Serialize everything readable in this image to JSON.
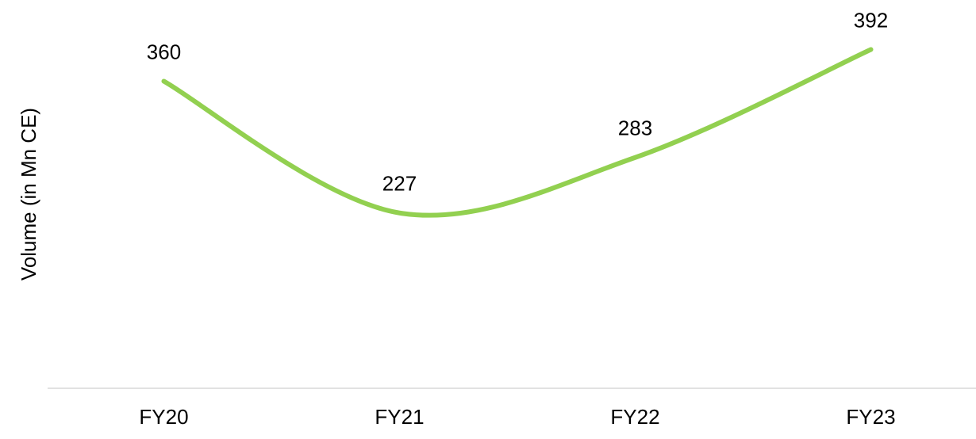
{
  "chart_data": {
    "type": "line",
    "ylabel": "Volume (in Mn CE)",
    "categories": [
      "FY20",
      "FY21",
      "FY22",
      "FY23"
    ],
    "series": [
      {
        "name": "Volume",
        "color": "#92d050",
        "values": [
          360,
          227,
          283,
          392
        ]
      }
    ],
    "ylim": [
      50,
      440
    ],
    "smooth": true,
    "data_labels": true
  }
}
